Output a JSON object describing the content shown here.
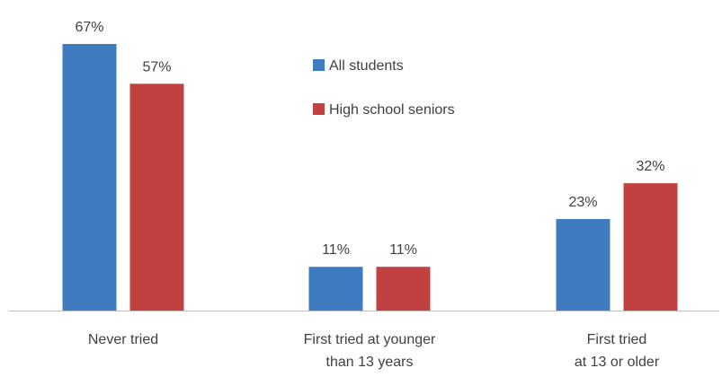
{
  "chart_data": {
    "type": "bar",
    "title": "",
    "xlabel": "",
    "ylabel": "",
    "ylim": [
      0,
      67
    ],
    "grid": false,
    "legend_position": "top-center",
    "categories": [
      [
        "Never tried"
      ],
      [
        "First tried at younger",
        "than 13 years"
      ],
      [
        "First tried",
        "at 13 or older"
      ]
    ],
    "series": [
      {
        "name": "All students",
        "color": "#3f7cbf",
        "values": [
          67,
          11,
          23
        ],
        "labels": [
          "67%",
          "11%",
          "23%"
        ]
      },
      {
        "name": "High school seniors",
        "color": "#c0413f",
        "values": [
          57,
          11,
          32
        ],
        "labels": [
          "57%",
          "11%",
          "32%"
        ]
      }
    ]
  }
}
